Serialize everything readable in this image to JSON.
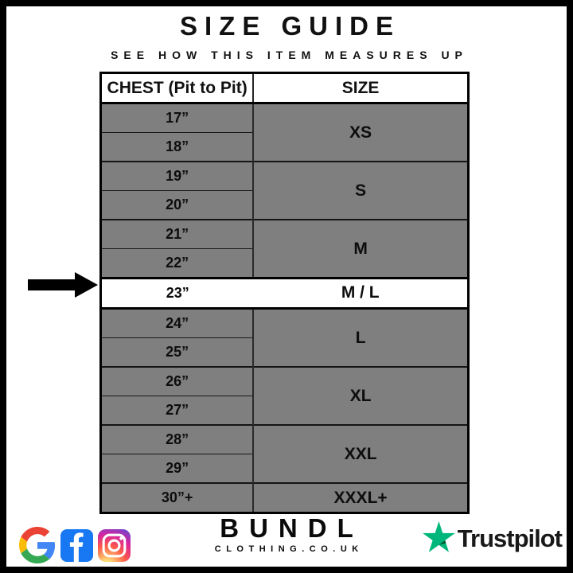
{
  "header": {
    "title": "SIZE GUIDE",
    "subtitle": "SEE HOW THIS ITEM MEASURES UP"
  },
  "table": {
    "columns": [
      "CHEST (Pit to Pit)",
      "SIZE"
    ],
    "groups": [
      {
        "chest": [
          "17”",
          "18”"
        ],
        "size": "XS",
        "highlight": false
      },
      {
        "chest": [
          "19”",
          "20”"
        ],
        "size": "S",
        "highlight": false
      },
      {
        "chest": [
          "21”",
          "22”"
        ],
        "size": "M",
        "highlight": false
      },
      {
        "chest": [
          "23”"
        ],
        "size": "M / L",
        "highlight": true
      },
      {
        "chest": [
          "24”",
          "25”"
        ],
        "size": "L",
        "highlight": false
      },
      {
        "chest": [
          "26”",
          "27”"
        ],
        "size": "XL",
        "highlight": false
      },
      {
        "chest": [
          "28”",
          "29”"
        ],
        "size": "XXL",
        "highlight": false
      },
      {
        "chest": [
          "30”+"
        ],
        "size": "XXXL+",
        "highlight": false
      }
    ],
    "colors": {
      "row_bg": "#7f7f7f",
      "highlight_bg": "#ffffff",
      "grid_line": "#1a1a1a",
      "outer_border": "#000000"
    }
  },
  "chart_data": {
    "type": "table",
    "title": "SIZE GUIDE",
    "subtitle": "SEE HOW THIS ITEM MEASURES UP",
    "columns": [
      "CHEST (Pit to Pit)",
      "SIZE"
    ],
    "rows": [
      [
        "17”",
        "XS"
      ],
      [
        "18”",
        "XS"
      ],
      [
        "19”",
        "S"
      ],
      [
        "20”",
        "S"
      ],
      [
        "21”",
        "M"
      ],
      [
        "22”",
        "M"
      ],
      [
        "23”",
        "M / L"
      ],
      [
        "24”",
        "L"
      ],
      [
        "25”",
        "L"
      ],
      [
        "26”",
        "XL"
      ],
      [
        "27”",
        "XL"
      ],
      [
        "28”",
        "XXL"
      ],
      [
        "29”",
        "XXL"
      ],
      [
        "30”+",
        "XXXL+"
      ]
    ],
    "highlighted_row": [
      "23”",
      "M / L"
    ]
  },
  "annotations": {
    "arrow_points_to": "23”"
  },
  "footer": {
    "brand": {
      "name": "BUNDL",
      "domain": "CLOTHING.CO.UK"
    },
    "social": {
      "icons": [
        "google-icon",
        "facebook-icon",
        "instagram-icon"
      ],
      "facebook_blue": "#1877F2"
    },
    "trustpilot": {
      "label": "Trustpilot",
      "star_color": "#00B67A",
      "star_shadow_color": "#005128",
      "text_color": "#191919"
    }
  }
}
